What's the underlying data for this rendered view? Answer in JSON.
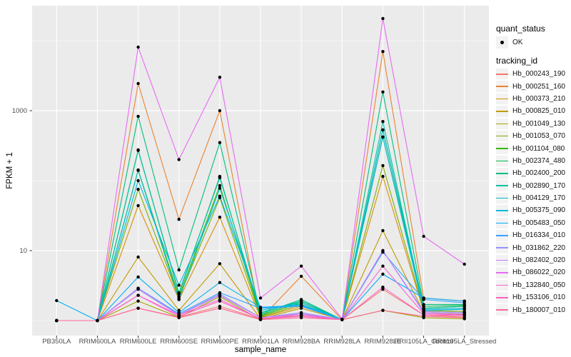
{
  "figure": {
    "background": "#FFFFFF",
    "panel_background": "#EBEBEB",
    "grid_color": "#FFFFFF",
    "tick_color": "#333333",
    "tick_label_color": "#4D4D4D",
    "point_color": "#000000"
  },
  "axes": {
    "x_title": "sample_name",
    "y_title": "FPKM + 1"
  },
  "legend": {
    "quant_status_title": "quant_status",
    "quant_status_items": [
      "OK"
    ],
    "tracking_id_title": "tracking_id",
    "key_background": "#F2F2F2"
  },
  "chart_data": {
    "type": "line",
    "xlabel": "sample_name",
    "ylabel": "FPKM + 1",
    "y_scale": "log10",
    "y_major_ticks": [
      1000,
      10
    ],
    "y_minor_gridlines": [
      1,
      100,
      10000
    ],
    "ylim": [
      1,
      31000
    ],
    "legend_position": "right",
    "grid": true,
    "categories": [
      "PB350LA",
      "RRIM600LA",
      "RRIM600LE",
      "RRIM600SE",
      "RRIM600PE",
      "RRIM901LA",
      "RRIM928BA",
      "RRIM928LA",
      "RRIM928LE",
      "RRII105LA_Control",
      "RRII105LA_Stressed"
    ],
    "quant_status": {
      "title": "quant_status",
      "items": [
        "OK"
      ]
    },
    "series": [
      {
        "name": "Hb_000243_190",
        "color": "#F8766D",
        "values": [
          1.0,
          1.0,
          1.5,
          1.12,
          1.6,
          1.05,
          1.25,
          1.03,
          2.8,
          1.2,
          1.12
        ]
      },
      {
        "name": "Hb_000251_160",
        "color": "#EA8331",
        "values": [
          1.0,
          1.0,
          2440,
          28,
          1000,
          1.06,
          4.3,
          1.03,
          7000,
          2.1,
          1.9
        ]
      },
      {
        "name": "Hb_000373_210",
        "color": "#D89000",
        "values": [
          1.0,
          1.0,
          44,
          2.0,
          30,
          1.1,
          1.6,
          1.03,
          115,
          1.35,
          1.3
        ]
      },
      {
        "name": "Hb_000825_010",
        "color": "#C09B00",
        "values": [
          1.0,
          1.0,
          8.1,
          1.4,
          6.5,
          1.06,
          1.5,
          1.03,
          19.3,
          1.3,
          1.22
        ]
      },
      {
        "name": "Hb_001049_130",
        "color": "#A3A500",
        "values": [
          1.0,
          1.0,
          1.9,
          1.12,
          2.2,
          1.03,
          1.2,
          1.03,
          1.4,
          1.1,
          1.06
        ]
      },
      {
        "name": "Hb_001053_070",
        "color": "#7CAE00",
        "values": [
          1.0,
          1.0,
          75,
          2.1,
          57,
          1.12,
          1.7,
          1.03,
          164,
          1.4,
          1.35
        ]
      },
      {
        "name": "Hb_001104_080",
        "color": "#39B600",
        "values": [
          1.0,
          1.0,
          142,
          2.2,
          85,
          1.16,
          1.8,
          1.03,
          420,
          1.5,
          1.6
        ]
      },
      {
        "name": "Hb_002374_480",
        "color": "#00BB4E",
        "values": [
          1.0,
          1.0,
          275,
          2.4,
          115,
          1.2,
          1.9,
          1.03,
          530,
          1.6,
          1.65
        ]
      },
      {
        "name": "Hb_002400_200",
        "color": "#00BF7D",
        "values": [
          1.0,
          1.0,
          830,
          5.3,
          350,
          1.25,
          2.0,
          1.03,
          1850,
          1.7,
          1.7
        ]
      },
      {
        "name": "Hb_002890_170",
        "color": "#00C1A3",
        "values": [
          1.0,
          1.0,
          270,
          2.5,
          110,
          1.3,
          1.9,
          1.03,
          700,
          1.5,
          1.6
        ]
      },
      {
        "name": "Hb_004129_170",
        "color": "#00BFC4",
        "values": [
          1.0,
          1.0,
          140,
          2.0,
          78,
          1.4,
          1.8,
          1.03,
          530,
          1.45,
          1.5
        ]
      },
      {
        "name": "Hb_005375_090",
        "color": "#00BAE0",
        "values": [
          1.0,
          1.0,
          100,
          3.2,
          60,
          1.5,
          1.7,
          1.03,
          420,
          1.4,
          1.45
        ]
      },
      {
        "name": "Hb_005483_050",
        "color": "#00B0F6",
        "values": [
          1.93,
          1.0,
          4.2,
          1.3,
          3.5,
          1.55,
          1.65,
          1.03,
          4.6,
          2.1,
          1.9
        ]
      },
      {
        "name": "Hb_016334_010",
        "color": "#35A2FF",
        "values": [
          1.0,
          1.0,
          2.9,
          1.25,
          2.5,
          1.5,
          1.6,
          1.03,
          9.5,
          2.0,
          1.8
        ]
      },
      {
        "name": "Hb_031862_220",
        "color": "#9590FF",
        "values": [
          1.0,
          1.0,
          2.9,
          1.2,
          2.4,
          1.1,
          1.3,
          1.03,
          10,
          1.35,
          1.3
        ]
      },
      {
        "name": "Hb_082402_020",
        "color": "#C77CFF",
        "values": [
          1.0,
          1.0,
          2.8,
          1.2,
          2.3,
          1.1,
          1.25,
          1.03,
          10,
          1.3,
          1.25
        ]
      },
      {
        "name": "Hb_086022_020",
        "color": "#E76BF3",
        "values": [
          1.0,
          1.0,
          8100,
          200,
          3000,
          2.1,
          6.0,
          1.05,
          20700,
          16,
          6.4
        ]
      },
      {
        "name": "Hb_132840_050",
        "color": "#FA62DB",
        "values": [
          1.0,
          1.0,
          2.3,
          1.2,
          2.0,
          1.06,
          1.2,
          1.03,
          6.0,
          1.25,
          1.2
        ]
      },
      {
        "name": "Hb_153106_010",
        "color": "#FF62BC",
        "values": [
          1.0,
          1.0,
          2.3,
          1.15,
          1.9,
          1.06,
          1.15,
          1.03,
          3.0,
          1.2,
          1.18
        ]
      },
      {
        "name": "Hb_180007_010",
        "color": "#FF6A98",
        "values": [
          1.0,
          1.0,
          1.5,
          1.1,
          1.5,
          1.03,
          1.1,
          1.03,
          1.4,
          1.15,
          1.1
        ]
      }
    ]
  }
}
